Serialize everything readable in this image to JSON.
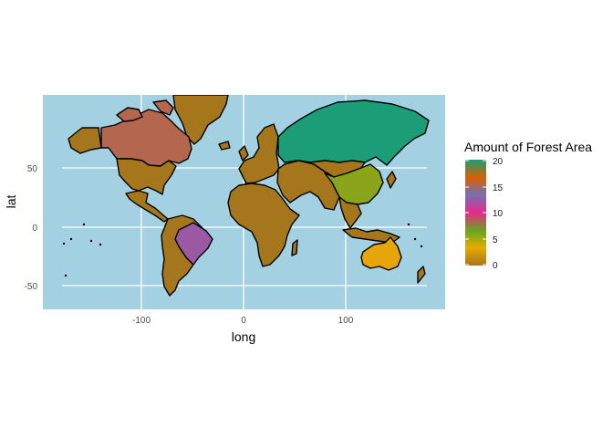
{
  "map": {
    "title": "",
    "xlabel": "long",
    "ylabel": "lat",
    "x_ticks": [
      -100,
      0,
      100
    ],
    "y_ticks": [
      -50,
      0,
      50
    ],
    "xlim": [
      -180,
      190
    ],
    "ylim": [
      -60,
      85
    ],
    "ocean_color": "#a3d1e2",
    "border_color": "#000000",
    "grid": true
  },
  "legend": {
    "title": "Amount of Forest Area",
    "ticks": [
      0,
      5,
      10,
      15,
      20
    ],
    "colors": [
      "#a6761d",
      "#e6ab02",
      "#66a61e",
      "#e7298a",
      "#7570b3",
      "#d95f02",
      "#1b9e77"
    ]
  },
  "regions": [
    {
      "name": "Russia",
      "value": 20,
      "color": "#1b9e77"
    },
    {
      "name": "Canada",
      "value": 17,
      "color": "#b5664f"
    },
    {
      "name": "Brazil",
      "value": 14,
      "color": "#9b59a3"
    },
    {
      "name": "China",
      "value": 6,
      "color": "#8aa51a"
    },
    {
      "name": "Australia",
      "value": 3,
      "color": "#e6a60a"
    },
    {
      "name": "United States",
      "value": 2,
      "color": "#a6761d"
    },
    {
      "name": "Other",
      "value": 0,
      "color": "#a6761d"
    }
  ]
}
